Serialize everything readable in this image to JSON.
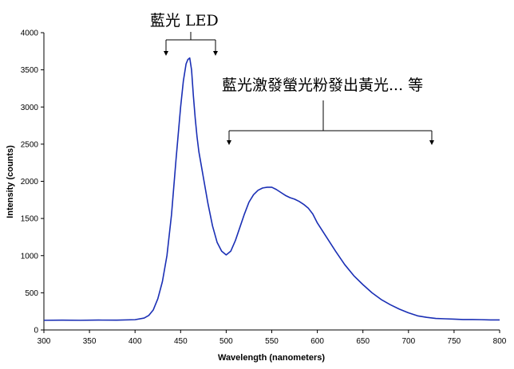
{
  "chart_data": {
    "type": "line",
    "xlabel": "Wavelength (nanometers)",
    "ylabel": "Intensity (counts)",
    "xlim": [
      300,
      800
    ],
    "ylim": [
      0,
      4000
    ],
    "xticks": [
      "300",
      "350",
      "400",
      "450",
      "500",
      "550",
      "600",
      "650",
      "700",
      "750",
      "800"
    ],
    "yticks": [
      "0",
      "500",
      "1000",
      "1500",
      "2000",
      "2500",
      "3000",
      "3500",
      "4000"
    ],
    "grid": false,
    "line_color": "#1a2fb5",
    "series": [
      {
        "x": [
          300,
          320,
          340,
          360,
          380,
          400,
          410,
          415,
          420,
          425,
          430,
          435,
          440,
          445,
          450,
          453,
          456,
          458,
          460,
          462,
          464,
          466,
          468,
          470,
          475,
          480,
          485,
          490,
          495,
          500,
          505,
          510,
          515,
          520,
          525,
          530,
          535,
          540,
          545,
          550,
          555,
          560,
          565,
          570,
          575,
          580,
          585,
          590,
          595,
          600,
          610,
          620,
          630,
          640,
          650,
          660,
          670,
          680,
          690,
          700,
          710,
          720,
          730,
          740,
          750,
          760,
          770,
          780,
          790,
          800
        ],
        "y": [
          130,
          132,
          130,
          133,
          132,
          138,
          160,
          195,
          270,
          420,
          650,
          1000,
          1550,
          2300,
          3000,
          3350,
          3580,
          3640,
          3660,
          3500,
          3150,
          2850,
          2600,
          2400,
          2050,
          1700,
          1400,
          1180,
          1060,
          1010,
          1060,
          1200,
          1380,
          1560,
          1720,
          1820,
          1880,
          1910,
          1920,
          1920,
          1890,
          1850,
          1810,
          1780,
          1760,
          1730,
          1690,
          1640,
          1560,
          1440,
          1250,
          1060,
          880,
          730,
          610,
          500,
          410,
          340,
          280,
          230,
          190,
          170,
          155,
          150,
          145,
          140,
          140,
          138,
          135,
          135
        ]
      }
    ],
    "annotations": [
      {
        "text": "藍光 LED"
      },
      {
        "text": "藍光激發螢光粉發出黃光... 等"
      }
    ]
  }
}
